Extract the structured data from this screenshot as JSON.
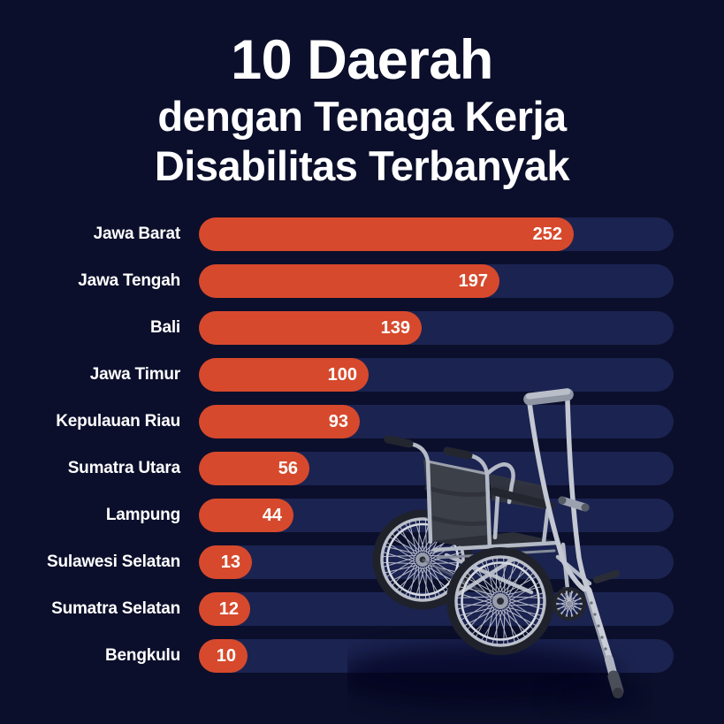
{
  "title": {
    "line1": "10 Daerah",
    "line2": "dengan Tenaga Kerja",
    "line3": "Disabilitas Terbanyak"
  },
  "chart_data": {
    "type": "bar",
    "orientation": "horizontal",
    "title": "10 Daerah dengan Tenaga Kerja Disabilitas Terbanyak",
    "categories": [
      "Jawa Barat",
      "Jawa Tengah",
      "Bali",
      "Jawa Timur",
      "Kepulauan Riau",
      "Sumatra Utara",
      "Lampung",
      "Sulawesi Selatan",
      "Sumatra Selatan",
      "Bengkulu"
    ],
    "values": [
      252,
      197,
      139,
      100,
      93,
      56,
      44,
      13,
      12,
      10
    ],
    "xlabel": "",
    "ylabel": "",
    "xlim": [
      0,
      326
    ],
    "grid": false,
    "legend": false,
    "value_labels_inside_bars": true
  },
  "colors": {
    "background": "#0b0f2b",
    "bar_fill": "#d7492c",
    "bar_track": "#1b2351",
    "text": "#ffffff"
  },
  "decoration": {
    "illustration": "wheelchair with crutch photo cut-out"
  }
}
